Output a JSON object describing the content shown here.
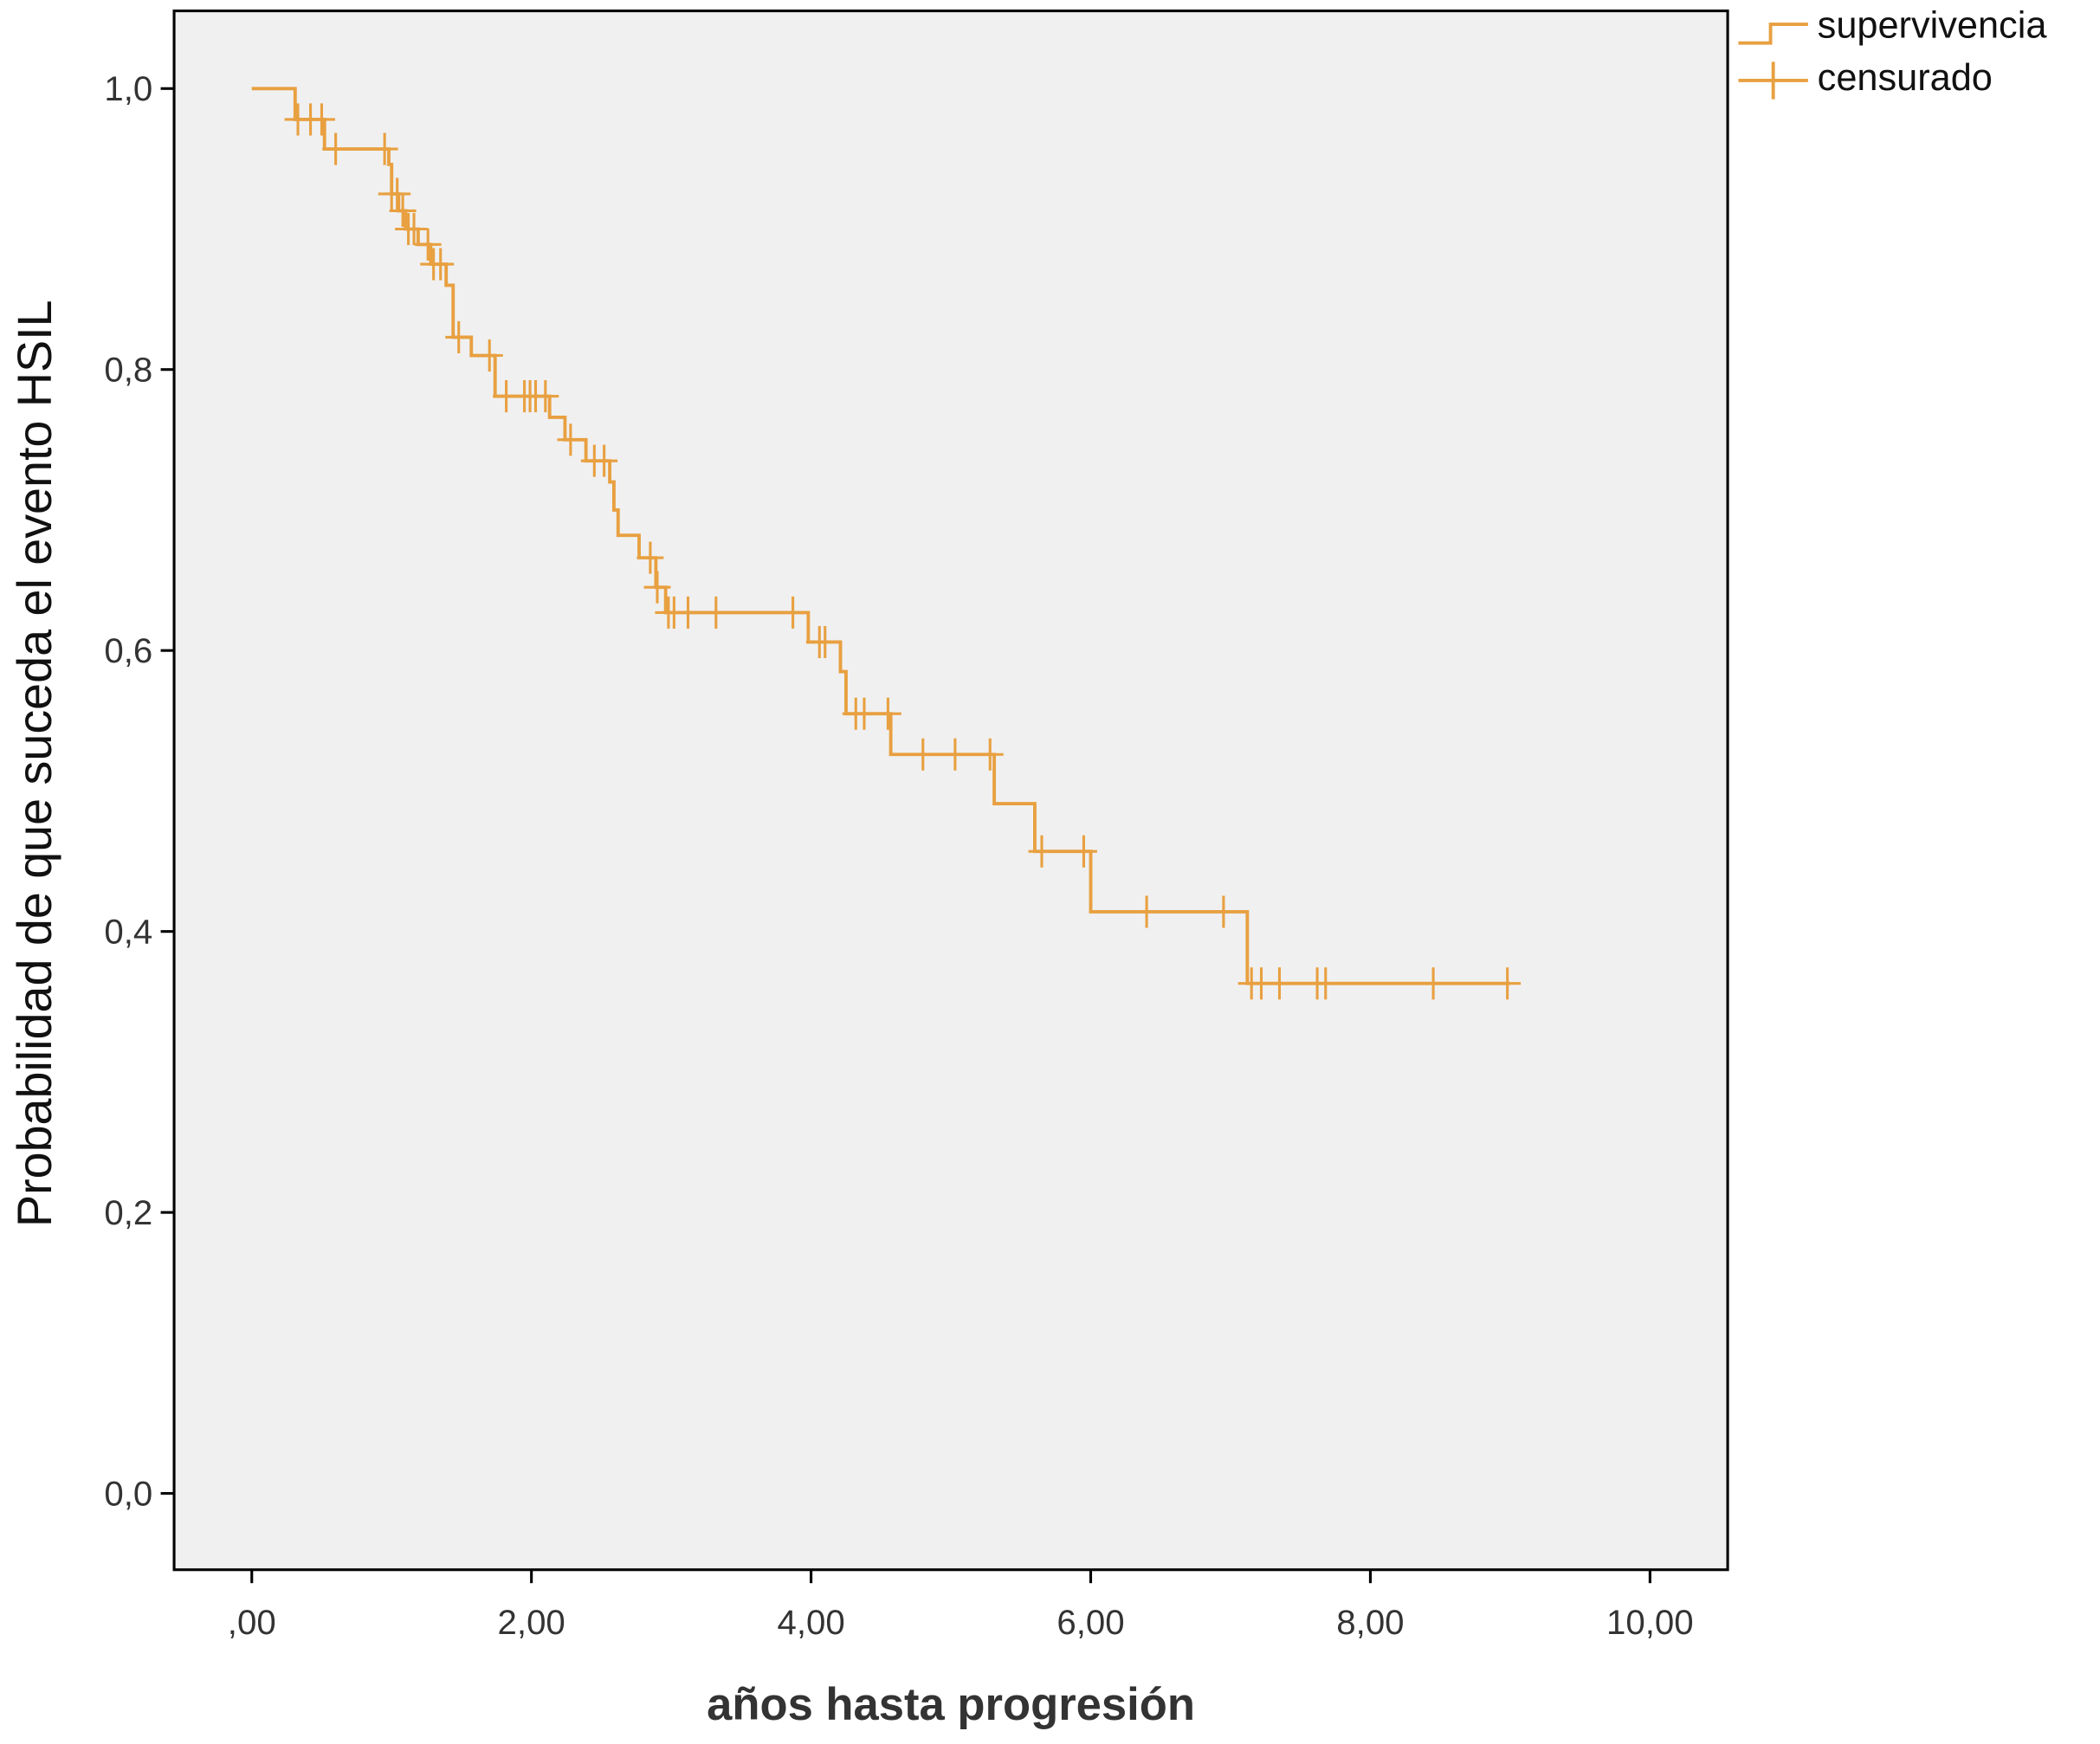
{
  "chart_data": {
    "type": "line",
    "subtype": "kaplan-meier-step",
    "title": "",
    "xlabel": "años hasta progresión",
    "ylabel": "Probabilidad de que suceda el evento HSIL",
    "xlim": [
      -0.55,
      10.55
    ],
    "ylim": [
      -0.055,
      1.055
    ],
    "x_ticks": [
      0,
      2,
      4,
      6,
      8,
      10
    ],
    "x_tick_labels": [
      ",00",
      "2,00",
      "4,00",
      "6,00",
      "8,00",
      "10,00"
    ],
    "y_ticks": [
      0,
      0.2,
      0.4,
      0.6,
      0.8,
      1.0
    ],
    "y_tick_labels": [
      "0,0",
      "0,2",
      "0,4",
      "0,6",
      "0,8",
      "1,0"
    ],
    "grid": false,
    "legend": {
      "placement": "top-right-outside",
      "entries": [
        "supervivencia",
        "censurado"
      ]
    },
    "series": [
      {
        "name": "supervivencia",
        "color": "#E8A040",
        "steps": [
          [
            0,
            1.0
          ],
          [
            0.31,
            0.978
          ],
          [
            0.52,
            0.957
          ],
          [
            0.98,
            0.946
          ],
          [
            1.0,
            0.925
          ],
          [
            1.05,
            0.913
          ],
          [
            1.1,
            0.9
          ],
          [
            1.19,
            0.889
          ],
          [
            1.28,
            0.875
          ],
          [
            1.39,
            0.86
          ],
          [
            1.44,
            0.823
          ],
          [
            1.57,
            0.81
          ],
          [
            1.74,
            0.781
          ],
          [
            2.13,
            0.766
          ],
          [
            2.24,
            0.75
          ],
          [
            2.39,
            0.735
          ],
          [
            2.56,
            0.72
          ],
          [
            2.59,
            0.7
          ],
          [
            2.62,
            0.682
          ],
          [
            2.77,
            0.666
          ],
          [
            2.89,
            0.645
          ],
          [
            2.96,
            0.627
          ],
          [
            3.98,
            0.606
          ],
          [
            4.21,
            0.585
          ],
          [
            4.25,
            0.555
          ],
          [
            4.57,
            0.526
          ],
          [
            5.31,
            0.491
          ],
          [
            5.6,
            0.457
          ],
          [
            6.0,
            0.414
          ],
          [
            7.12,
            0.363
          ]
        ],
        "end_time": 9.0
      },
      {
        "name": "censurado",
        "color": "#E8A040",
        "times": [
          0.33,
          0.42,
          0.5,
          0.6,
          0.95,
          1.0,
          1.04,
          1.08,
          1.12,
          1.16,
          1.26,
          1.3,
          1.35,
          1.48,
          1.7,
          1.82,
          1.95,
          1.99,
          2.03,
          2.1,
          2.28,
          2.45,
          2.52,
          2.85,
          2.9,
          2.98,
          3.02,
          3.12,
          3.32,
          3.87,
          4.06,
          4.1,
          4.32,
          4.38,
          4.55,
          4.8,
          5.03,
          5.28,
          5.65,
          5.95,
          6.4,
          6.95,
          7.15,
          7.22,
          7.35,
          7.62,
          7.68,
          8.45,
          8.98
        ]
      }
    ]
  }
}
